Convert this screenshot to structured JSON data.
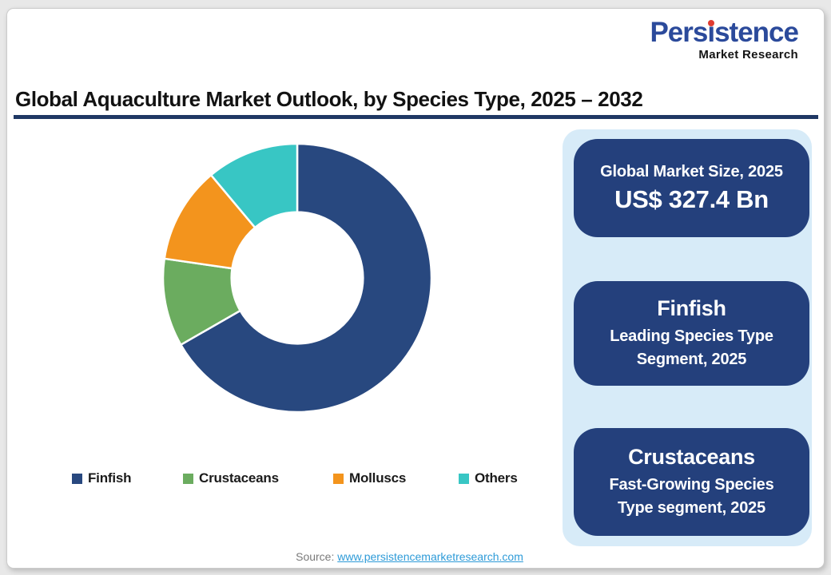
{
  "logo": {
    "full_name": "Persistence",
    "name_parts": [
      "Pers",
      "ı",
      "stence"
    ],
    "subtitle": "Market Research",
    "brand_blue": "#2B4A9B",
    "dot_red": "#E03C31"
  },
  "header": {
    "title": "Global Aquaculture Market Outlook, by Species Type, 2025 – 2032",
    "underline_color": "#1F3864"
  },
  "chart_data": {
    "type": "pie",
    "variant": "donut",
    "title": "Global Aquaculture Market Outlook, by Species Type, 2025 – 2032",
    "categories": [
      "Finfish",
      "Crustaceans",
      "Molluscs",
      "Others"
    ],
    "values": [
      66.7,
      10.6,
      11.6,
      11.1
    ],
    "values_note": "percent share of donut arc, estimated from segment angles (no data labels shown in image)",
    "colors": [
      "#28487F",
      "#6BAC5F",
      "#F3941D",
      "#38C6C4"
    ],
    "start_angle_deg": 0,
    "direction": "clockwise",
    "inner_radius_ratio": 0.49,
    "legend_position": "bottom",
    "slice_gap_color": "#FFFFFF"
  },
  "panel": {
    "background": "#D7EBF8",
    "box_color": "#24407C",
    "boxes": [
      {
        "title": "Global Market Size, 2025",
        "value": "US$ 327.4 Bn"
      },
      {
        "title": "Finfish",
        "sub_line1": "Leading Species Type",
        "sub_line2": "Segment, 2025"
      },
      {
        "title": "Crustaceans",
        "sub_line1": "Fast-Growing Species",
        "sub_line2": "Type segment, 2025"
      }
    ]
  },
  "footer": {
    "source_label": "Source:",
    "source_url": "www.persistencemarketresearch.com"
  }
}
